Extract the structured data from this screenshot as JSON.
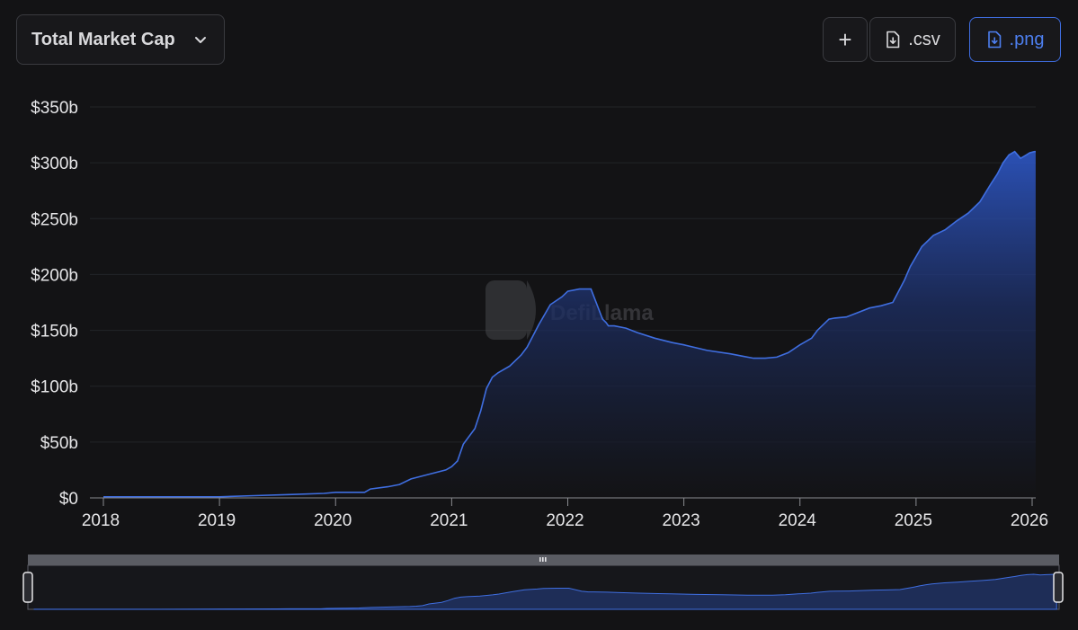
{
  "metric_selector": {
    "label": "Total Market Cap"
  },
  "toolbar": {
    "add_label": "+",
    "csv_label": ".csv",
    "png_label": ".png"
  },
  "watermark": {
    "text": "DefiLlama"
  },
  "colors": {
    "background": "#131315",
    "line": "#3f6ee0",
    "accent": "#4d7ff0",
    "grid": "#232428"
  },
  "chart_data": {
    "type": "area",
    "title": "",
    "xlabel": "",
    "ylabel": "",
    "ylim": [
      0,
      350
    ],
    "xlim": [
      2017.95,
      2026.05
    ],
    "yticks": [
      0,
      50,
      100,
      150,
      200,
      250,
      300,
      350
    ],
    "ytick_labels": [
      "$0",
      "$50b",
      "$100b",
      "$150b",
      "$200b",
      "$250b",
      "$300b",
      "$350b"
    ],
    "xticks": [
      2018,
      2019,
      2020,
      2021,
      2022,
      2023,
      2024,
      2025,
      2026
    ],
    "xtick_labels": [
      "2018",
      "2019",
      "2020",
      "2021",
      "2022",
      "2023",
      "2024",
      "2025",
      "2026"
    ],
    "grid": true,
    "legend": "none",
    "series": [
      {
        "x": [
          2018.0,
          2018.5,
          2019.0,
          2019.3,
          2019.6,
          2019.9,
          2020.0,
          2020.25,
          2020.3,
          2020.45,
          2020.55,
          2020.65,
          2020.8,
          2020.95,
          2021.0,
          2021.05,
          2021.1,
          2021.2,
          2021.25,
          2021.3,
          2021.35,
          2021.4,
          2021.5,
          2021.6,
          2021.65,
          2021.75,
          2021.85,
          2021.95,
          2022.0,
          2022.1,
          2022.2,
          2022.3,
          2022.33,
          2022.35,
          2022.4,
          2022.5,
          2022.6,
          2022.75,
          2022.9,
          2023.0,
          2023.2,
          2023.4,
          2023.5,
          2023.6,
          2023.7,
          2023.8,
          2023.9,
          2024.0,
          2024.1,
          2024.15,
          2024.25,
          2024.3,
          2024.4,
          2024.5,
          2024.6,
          2024.7,
          2024.8,
          2024.9,
          2024.95,
          2025.0,
          2025.05,
          2025.15,
          2025.25,
          2025.35,
          2025.45,
          2025.55,
          2025.65,
          2025.7,
          2025.75,
          2025.8,
          2025.85,
          2025.9,
          2025.95,
          2025.98,
          2026.02,
          2026.03
        ],
        "y": [
          1,
          1,
          1,
          2,
          3,
          4,
          5,
          5,
          8,
          10,
          12,
          17,
          21,
          25,
          28,
          33,
          48,
          62,
          78,
          98,
          108,
          112,
          118,
          128,
          135,
          155,
          173,
          180,
          185,
          187,
          187,
          160,
          157,
          154,
          154,
          152,
          148,
          143,
          139,
          137,
          132,
          129,
          127,
          125,
          125,
          126,
          130,
          137,
          143,
          150,
          160,
          161,
          162,
          166,
          170,
          172,
          175,
          195,
          207,
          216,
          225,
          235,
          240,
          248,
          255,
          265,
          282,
          290,
          300,
          307,
          310,
          304,
          307,
          309,
          310,
          310
        ]
      }
    ]
  }
}
